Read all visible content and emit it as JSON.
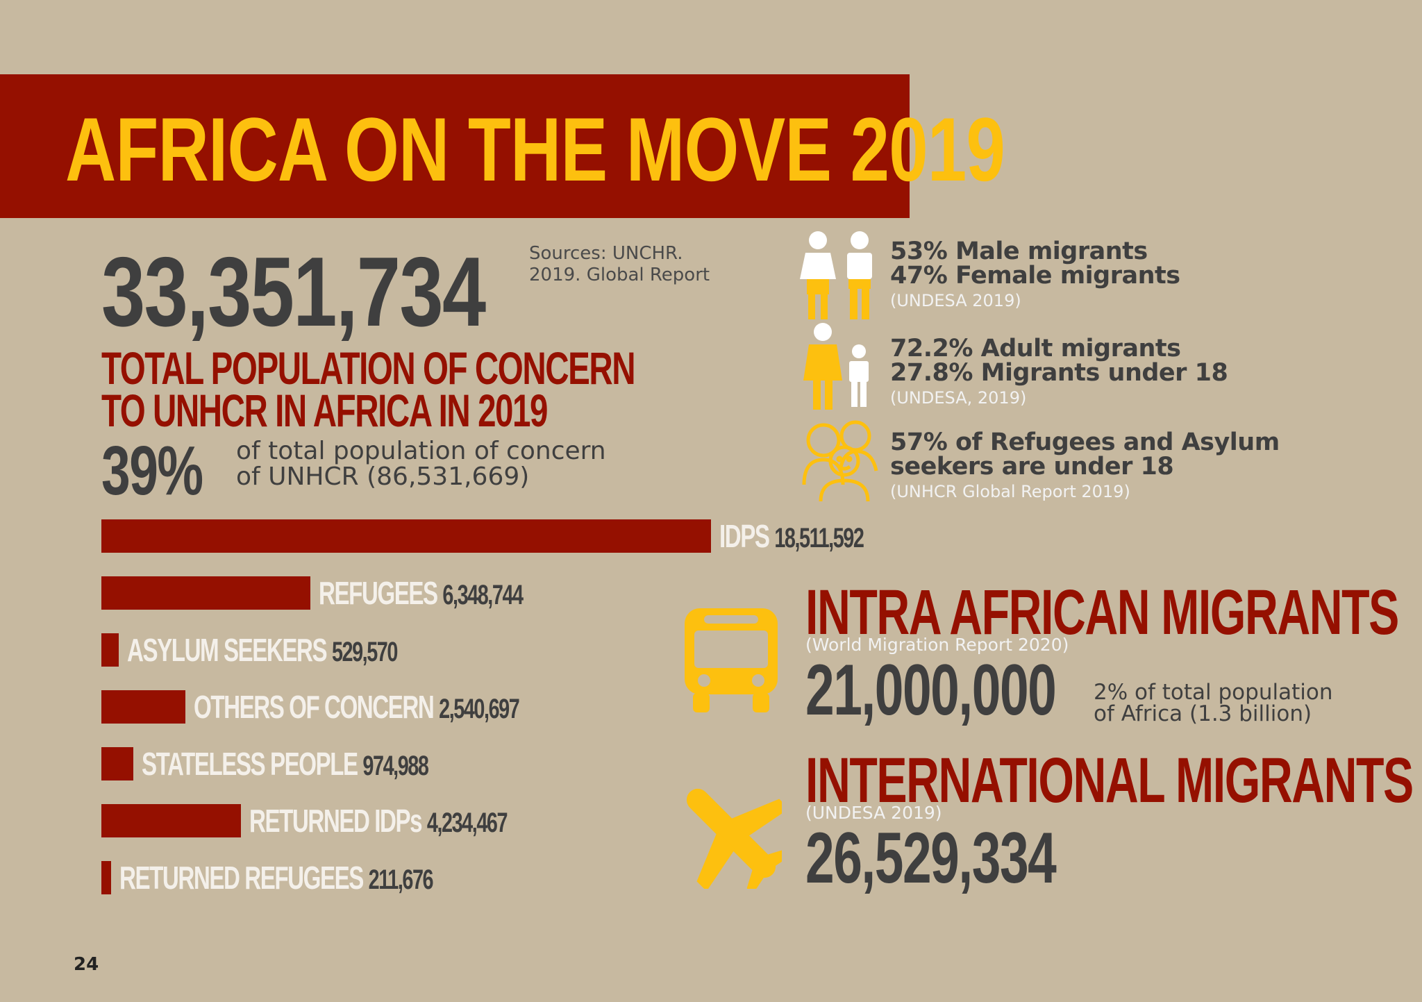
{
  "header": {
    "title": "AFRICA ON THE MOVE 2019"
  },
  "total": {
    "number": "33,351,734",
    "label_line1": "TOTAL POPULATION OF CONCERN",
    "label_line2": "TO UNHCR IN AFRICA IN 2019",
    "sources_line1": "Sources: UNCHR.",
    "sources_line2": "2019. Global Report",
    "percent": "39%",
    "percent_text_line1": "of total population of concern",
    "percent_text_line2": "of UNHCR (86,531,669)"
  },
  "demographics": [
    {
      "line1": "53% Male migrants",
      "line2": "47% Female migrants",
      "source": "(UNDESA 2019)",
      "icon": "male-female-icon"
    },
    {
      "line1": "72.2% Adult migrants",
      "line2": "27.8% Migrants under 18",
      "source": "(UNDESA, 2019)",
      "icon": "adult-child-icon"
    },
    {
      "line1": "57% of Refugees and Asylum",
      "line2": "seekers are under 18",
      "source": "(UNHCR Global Report 2019)",
      "icon": "family-group-icon"
    }
  ],
  "chart_data": {
    "type": "bar",
    "orientation": "horizontal",
    "categories": [
      "IDPS",
      "REFUGEES",
      "ASYLUM SEEKERS",
      "OTHERS OF CONCERN",
      "STATELESS PEOPLE",
      "RETURNED IDPs",
      "RETURNED REFUGEES"
    ],
    "values": [
      18511592,
      6348744,
      529570,
      2540697,
      974988,
      4234467,
      211676
    ],
    "value_labels": [
      "18,511,592",
      "6,348,744",
      "529,570",
      "2,540,697",
      "974,988",
      "4,234,467",
      "211,676"
    ],
    "title": "",
    "xlabel": "",
    "ylabel": "",
    "bar_color": "#951000"
  },
  "migrants": {
    "intra": {
      "title": "INTRA AFRICAN MIGRANTS",
      "source": "(World Migration Report 2020)",
      "number": "21,000,000",
      "note_line1": "2% of total population",
      "note_line2": "of Africa (1.3 billion)",
      "icon": "bus-icon"
    },
    "international": {
      "title": "INTERNATIONAL MIGRANTS",
      "source": "(UNDESA 2019)",
      "number": "26,529,334",
      "icon": "airplane-icon"
    }
  },
  "colors": {
    "background": "#c7b9a0",
    "accent_red": "#951000",
    "accent_yellow": "#fdc00f",
    "text_dark": "#3f3f3f"
  },
  "page": {
    "number": "24"
  }
}
